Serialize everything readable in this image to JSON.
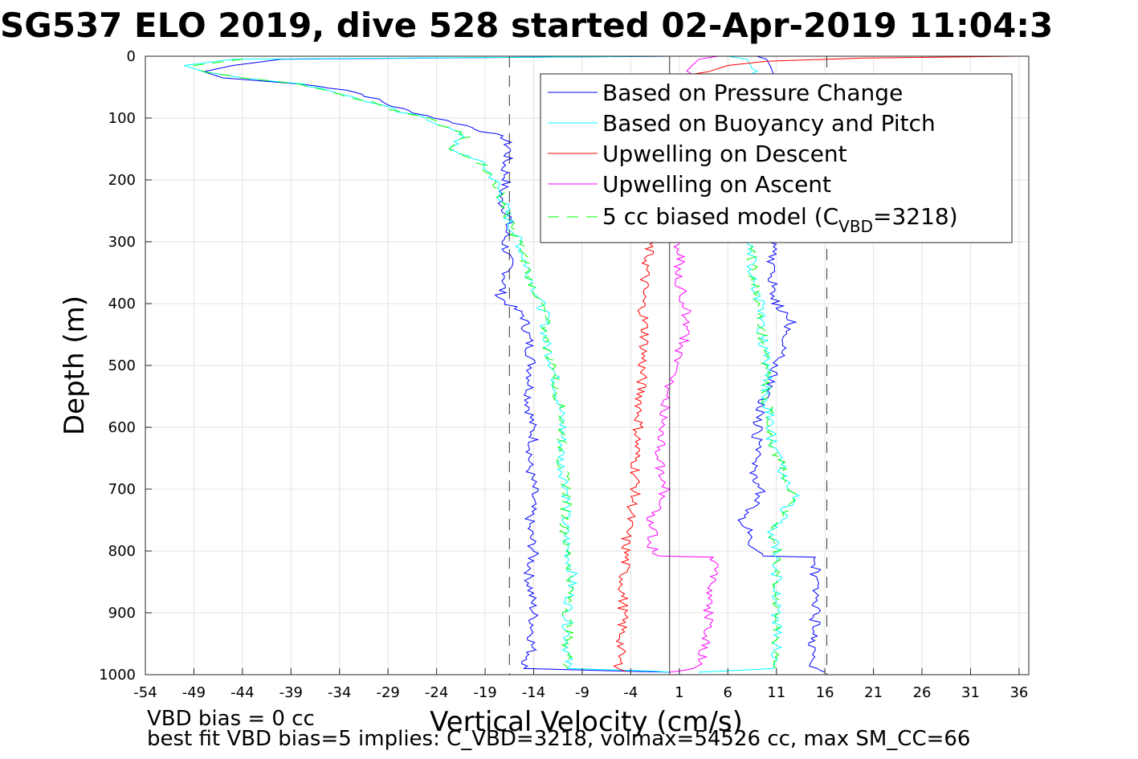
{
  "chart_data": {
    "type": "line",
    "title": "SG537 ELO 2019, dive 528 started 02-Apr-2019 11:04:3",
    "xlabel": "Vertical Velocity (cm/s)",
    "ylabel": "Depth (m)",
    "xlim": [
      -54,
      37
    ],
    "ylim": [
      0,
      1000
    ],
    "y_reversed": true,
    "grid": true,
    "x_ticks": [
      -54,
      -49,
      -44,
      -39,
      -34,
      -29,
      -24,
      -19,
      -14,
      -9,
      -4,
      1,
      6,
      11,
      16,
      21,
      26,
      31,
      36
    ],
    "y_ticks": [
      0,
      100,
      200,
      300,
      400,
      500,
      600,
      700,
      800,
      900,
      1000
    ],
    "legend_position": "top-right",
    "legend": [
      {
        "label": "Based on Pressure Change",
        "color": "#0000ff",
        "style": "solid"
      },
      {
        "label": "Based on Buoyancy and Pitch",
        "color": "#00ffff",
        "style": "solid"
      },
      {
        "label": "Upwelling on Descent",
        "color": "#ff0000",
        "style": "solid"
      },
      {
        "label": "Upwelling on Ascent",
        "color": "#ff00ff",
        "style": "solid"
      },
      {
        "label": "5 cc biased model (C",
        "subscript": "VBD",
        "suffix": "=3218)",
        "color": "#00ff00",
        "style": "dashed"
      }
    ],
    "reference_lines": {
      "zero_line_x": 0,
      "dashed_black_x": [
        -16.5,
        16.2
      ]
    },
    "series": [
      {
        "name": "Based on Pressure Change (descent)",
        "color": "#0000ff",
        "points": [
          [
            0,
            0
          ],
          [
            -40,
            5
          ],
          [
            -45,
            15
          ],
          [
            -48,
            25
          ],
          [
            -46,
            35
          ],
          [
            -38,
            45
          ],
          [
            -33,
            55
          ],
          [
            -31,
            65
          ],
          [
            -29,
            78
          ],
          [
            -27,
            88
          ],
          [
            -24,
            100
          ],
          [
            -21,
            112
          ],
          [
            -19,
            122
          ],
          [
            -17,
            132
          ],
          [
            -16.5,
            150
          ],
          [
            -17,
            180
          ],
          [
            -16.8,
            200
          ],
          [
            -17.5,
            230
          ],
          [
            -16.5,
            260
          ],
          [
            -17,
            300
          ],
          [
            -16.5,
            340
          ],
          [
            -17.5,
            390
          ],
          [
            -15,
            420
          ],
          [
            -14.5,
            460
          ],
          [
            -14.2,
            500
          ],
          [
            -14.5,
            560
          ],
          [
            -14,
            620
          ],
          [
            -14.5,
            660
          ],
          [
            -14,
            700
          ],
          [
            -14.5,
            760
          ],
          [
            -14,
            800
          ],
          [
            -14.5,
            840
          ],
          [
            -14,
            900
          ],
          [
            -14.2,
            960
          ],
          [
            -15,
            990
          ],
          [
            -3,
            995
          ],
          [
            0,
            996
          ]
        ]
      },
      {
        "name": "Based on Buoyancy and Pitch (descent)",
        "color": "#00ffff",
        "points": [
          [
            0,
            0
          ],
          [
            -45,
            5
          ],
          [
            -50,
            15
          ],
          [
            -48,
            25
          ],
          [
            -44,
            35
          ],
          [
            -38,
            45
          ],
          [
            -35,
            55
          ],
          [
            -33,
            65
          ],
          [
            -30,
            78
          ],
          [
            -28,
            90
          ],
          [
            -25,
            100
          ],
          [
            -23,
            115
          ],
          [
            -21,
            130
          ],
          [
            -23,
            150
          ],
          [
            -20,
            165
          ],
          [
            -19,
            180
          ],
          [
            -18,
            200
          ],
          [
            -17,
            240
          ],
          [
            -16.5,
            270
          ],
          [
            -15.5,
            300
          ],
          [
            -14.5,
            350
          ],
          [
            -13.5,
            390
          ],
          [
            -12.8,
            420
          ],
          [
            -12.8,
            460
          ],
          [
            -12,
            500
          ],
          [
            -11.5,
            550
          ],
          [
            -11,
            600
          ],
          [
            -11.2,
            660
          ],
          [
            -10.5,
            700
          ],
          [
            -10.8,
            760
          ],
          [
            -10.5,
            800
          ],
          [
            -10,
            840
          ],
          [
            -10.5,
            900
          ],
          [
            -10.5,
            960
          ],
          [
            -10.5,
            990
          ],
          [
            -2,
            994
          ],
          [
            0,
            996
          ]
        ]
      },
      {
        "name": "Based on Pressure Change (ascent)",
        "color": "#0000ff",
        "points": [
          [
            16,
            996
          ],
          [
            15,
            990
          ],
          [
            14.5,
            960
          ],
          [
            15,
            930
          ],
          [
            15,
            900
          ],
          [
            15,
            860
          ],
          [
            15,
            830
          ],
          [
            15,
            810
          ],
          [
            10,
            808
          ],
          [
            8.5,
            790
          ],
          [
            8.5,
            770
          ],
          [
            7.5,
            750
          ],
          [
            8.5,
            730
          ],
          [
            9.5,
            700
          ],
          [
            8.5,
            670
          ],
          [
            9,
            640
          ],
          [
            9,
            600
          ],
          [
            9.5,
            560
          ],
          [
            10.5,
            530
          ],
          [
            11,
            500
          ],
          [
            12,
            460
          ],
          [
            12.5,
            430
          ],
          [
            11,
            400
          ],
          [
            10.5,
            360
          ],
          [
            10.5,
            300
          ],
          [
            10.5,
            20
          ],
          [
            10,
            5
          ],
          [
            9,
            0
          ]
        ]
      },
      {
        "name": "Based on Buoyancy and Pitch (ascent)",
        "color": "#00ffff",
        "points": [
          [
            3,
            996
          ],
          [
            11,
            990
          ],
          [
            11,
            960
          ],
          [
            11,
            900
          ],
          [
            11,
            850
          ],
          [
            11,
            810
          ],
          [
            11,
            790
          ],
          [
            10.5,
            770
          ],
          [
            11.5,
            750
          ],
          [
            12,
            730
          ],
          [
            13,
            710
          ],
          [
            12,
            690
          ],
          [
            11.5,
            660
          ],
          [
            10.5,
            630
          ],
          [
            10.5,
            600
          ],
          [
            10,
            560
          ],
          [
            10,
            520
          ],
          [
            9.8,
            480
          ],
          [
            9.5,
            440
          ],
          [
            9.3,
            400
          ],
          [
            8.5,
            360
          ],
          [
            8.5,
            300
          ],
          [
            8.5,
            20
          ],
          [
            8,
            5
          ],
          [
            6,
            0
          ]
        ]
      },
      {
        "name": "5 cc biased model (descent)",
        "color": "#00ff00",
        "style": "dashed",
        "points": [
          [
            -44,
            5
          ],
          [
            -49,
            15
          ],
          [
            -48,
            25
          ],
          [
            -44,
            35
          ],
          [
            -38,
            45
          ],
          [
            -35,
            55
          ],
          [
            -33,
            65
          ],
          [
            -30,
            78
          ],
          [
            -28,
            90
          ],
          [
            -25,
            100
          ],
          [
            -23,
            115
          ],
          [
            -21,
            130
          ],
          [
            -23,
            150
          ],
          [
            -20,
            165
          ],
          [
            -19,
            180
          ],
          [
            -18,
            200
          ],
          [
            -17,
            240
          ],
          [
            -16.5,
            270
          ],
          [
            -15.5,
            300
          ],
          [
            -14.5,
            350
          ],
          [
            -13.5,
            390
          ],
          [
            -12.8,
            420
          ],
          [
            -12.8,
            460
          ],
          [
            -12,
            500
          ],
          [
            -11.5,
            550
          ],
          [
            -11,
            600
          ],
          [
            -11.2,
            660
          ],
          [
            -10.5,
            700
          ],
          [
            -10.8,
            760
          ],
          [
            -10.5,
            800
          ],
          [
            -10,
            840
          ],
          [
            -10.5,
            900
          ],
          [
            -10.5,
            960
          ],
          [
            -10.5,
            990
          ]
        ]
      },
      {
        "name": "5 cc biased model (ascent)",
        "color": "#00ff00",
        "style": "dashed",
        "points": [
          [
            11,
            990
          ],
          [
            11,
            960
          ],
          [
            11,
            900
          ],
          [
            11,
            850
          ],
          [
            11,
            810
          ],
          [
            11,
            790
          ],
          [
            10.5,
            770
          ],
          [
            11.5,
            750
          ],
          [
            12,
            730
          ],
          [
            13,
            710
          ],
          [
            12,
            690
          ],
          [
            11.5,
            660
          ],
          [
            10.5,
            630
          ],
          [
            10.5,
            600
          ],
          [
            10,
            560
          ],
          [
            10,
            520
          ],
          [
            9.8,
            480
          ],
          [
            9.5,
            440
          ],
          [
            9.3,
            400
          ],
          [
            8.5,
            360
          ],
          [
            8.5,
            300
          ]
        ]
      },
      {
        "name": "Upwelling on Descent",
        "color": "#ff0000",
        "points": [
          [
            36,
            0
          ],
          [
            20,
            3
          ],
          [
            10,
            8
          ],
          [
            6,
            15
          ],
          [
            4,
            25
          ],
          [
            0,
            35
          ],
          [
            -2,
            300
          ],
          [
            -2.5,
            350
          ],
          [
            -2.8,
            400
          ],
          [
            -2.5,
            450
          ],
          [
            -2.8,
            500
          ],
          [
            -3,
            550
          ],
          [
            -3.2,
            600
          ],
          [
            -3.5,
            650
          ],
          [
            -3.5,
            700
          ],
          [
            -4,
            740
          ],
          [
            -4.5,
            780
          ],
          [
            -4.5,
            810
          ],
          [
            -4.8,
            850
          ],
          [
            -4.8,
            900
          ],
          [
            -5,
            950
          ],
          [
            -5.3,
            990
          ],
          [
            -4.5,
            995
          ]
        ]
      },
      {
        "name": "Upwelling on Ascent",
        "color": "#ff00ff",
        "points": [
          [
            0,
            996
          ],
          [
            3,
            990
          ],
          [
            3.5,
            960
          ],
          [
            4,
            930
          ],
          [
            4,
            900
          ],
          [
            4.2,
            860
          ],
          [
            4.5,
            830
          ],
          [
            4.5,
            810
          ],
          [
            -1,
            808
          ],
          [
            -2,
            790
          ],
          [
            -1.5,
            770
          ],
          [
            -2,
            750
          ],
          [
            -1,
            730
          ],
          [
            -0.5,
            700
          ],
          [
            -1,
            670
          ],
          [
            -1,
            640
          ],
          [
            -0.5,
            600
          ],
          [
            -0.5,
            560
          ],
          [
            0,
            530
          ],
          [
            0.5,
            500
          ],
          [
            1.5,
            460
          ],
          [
            2,
            430
          ],
          [
            1.5,
            400
          ],
          [
            1,
            360
          ],
          [
            1,
            300
          ],
          [
            2,
            20
          ],
          [
            3,
            5
          ],
          [
            5,
            0
          ]
        ]
      }
    ]
  },
  "footer": {
    "line1": "VBD bias = 0 cc",
    "line2": "best fit VBD bias=5 implies: C_VBD=3218, volmax=54526 cc, max SM_CC=66"
  }
}
